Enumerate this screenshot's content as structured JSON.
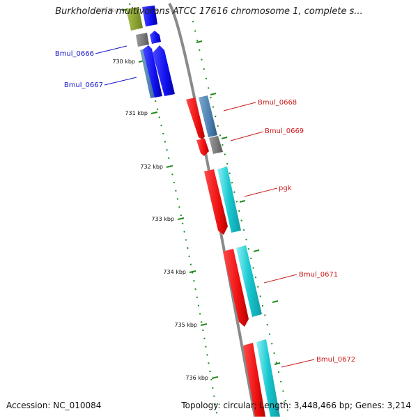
{
  "title": "Burkholderia multivorans ATCC 17616 chromosome 1, complete s...",
  "footer": {
    "accession": "Accession: NC_010084",
    "summary": "Topology: circular; Length: 3,448,466 bp; Genes: 3,214"
  },
  "colors": {
    "backbone": "#8a8a8a",
    "tick": "#1f8a1f",
    "label_left": "#1515c8",
    "label_right": "#cc1a1a",
    "gene_red": "#ee1111",
    "gene_blue": "#1010ee",
    "gene_steel": "#4a7fb0",
    "gene_cyan": "#18c8d0",
    "gene_gray": "#777777",
    "gene_olive": "#88a030"
  },
  "ticks": [
    {
      "label": "729 kbp"
    },
    {
      "label": "730 kbp"
    },
    {
      "label": "731 kbp"
    },
    {
      "label": "732 kbp"
    },
    {
      "label": "733 kbp"
    },
    {
      "label": "734 kbp"
    },
    {
      "label": "735 kbp"
    },
    {
      "label": "736 kbp"
    }
  ],
  "gene_labels": [
    {
      "name": "Bmul_0666",
      "side": "left"
    },
    {
      "name": "Bmul_0667",
      "side": "left"
    },
    {
      "name": "Bmul_0668",
      "side": "right"
    },
    {
      "name": "Bmul_0669",
      "side": "right"
    },
    {
      "name": "pgk",
      "side": "right"
    },
    {
      "name": "Bmul_0671",
      "side": "right"
    },
    {
      "name": "Bmul_0672",
      "side": "right"
    }
  ]
}
